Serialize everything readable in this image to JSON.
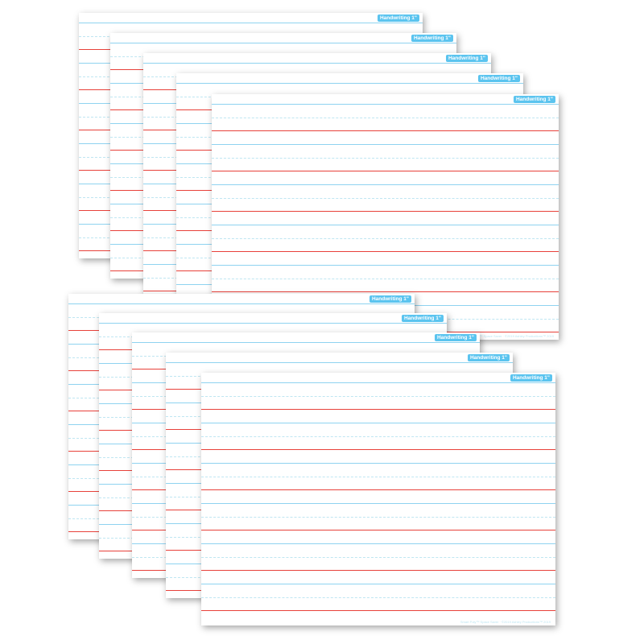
{
  "product": {
    "board_label": "Handwriting 1\"",
    "footer_text": "Smart Poly™ Space Saver · ©2019 Ashley Productions™ 2019",
    "colors": {
      "tag": "#5bc4ef",
      "solid_line": "#8fd3f0",
      "mid_line": "#e8413a",
      "dashed_line": "#bfe6f2"
    },
    "board_count": 10,
    "groups": [
      {
        "name": "top-stack",
        "boards": 5
      },
      {
        "name": "bottom-stack",
        "boards": 5
      }
    ]
  }
}
